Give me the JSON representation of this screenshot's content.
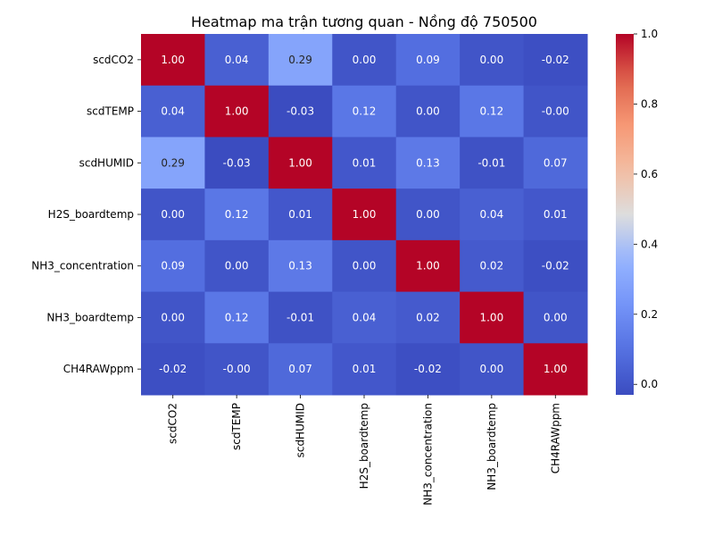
{
  "chart_data": {
    "type": "heatmap",
    "title": "Heatmap ma trận tương quan - Nồng độ 750500",
    "xlabel": "",
    "ylabel": "",
    "row_labels": [
      "scdCO2",
      "scdTEMP",
      "scdHUMID",
      "H2S_boardtemp",
      "NH3_concentration",
      "NH3_boardtemp",
      "CH4RAWppm"
    ],
    "col_labels": [
      "scdCO2",
      "scdTEMP",
      "scdHUMID",
      "H2S_boardtemp",
      "NH3_concentration",
      "NH3_boardtemp",
      "CH4RAWppm"
    ],
    "values": [
      [
        1.0,
        0.04,
        0.29,
        0.0,
        0.09,
        0.0,
        -0.02
      ],
      [
        0.04,
        1.0,
        -0.03,
        0.12,
        0.0,
        0.12,
        -0.0
      ],
      [
        0.29,
        -0.03,
        1.0,
        0.01,
        0.13,
        -0.01,
        0.07
      ],
      [
        0.0,
        0.12,
        0.01,
        1.0,
        0.0,
        0.04,
        0.01
      ],
      [
        0.09,
        0.0,
        0.13,
        0.0,
        1.0,
        0.02,
        -0.02
      ],
      [
        0.0,
        0.12,
        -0.01,
        0.04,
        0.02,
        1.0,
        0.0
      ],
      [
        -0.02,
        -0.0,
        0.07,
        0.01,
        -0.02,
        0.0,
        1.0
      ]
    ],
    "cell_labels": [
      [
        "1.00",
        "0.04",
        "0.29",
        "0.00",
        "0.09",
        "0.00",
        "-0.02"
      ],
      [
        "0.04",
        "1.00",
        "-0.03",
        "0.12",
        "0.00",
        "0.12",
        "-0.00"
      ],
      [
        "0.29",
        "-0.03",
        "1.00",
        "0.01",
        "0.13",
        "-0.01",
        "0.07"
      ],
      [
        "0.00",
        "0.12",
        "0.01",
        "1.00",
        "0.00",
        "0.04",
        "0.01"
      ],
      [
        "0.09",
        "0.00",
        "0.13",
        "0.00",
        "1.00",
        "0.02",
        "-0.02"
      ],
      [
        "0.00",
        "0.12",
        "-0.01",
        "0.04",
        "0.02",
        "1.00",
        "0.00"
      ],
      [
        "-0.02",
        "-0.00",
        "0.07",
        "0.01",
        "-0.02",
        "0.00",
        "1.00"
      ]
    ],
    "colormap": "coolwarm",
    "vmin": -0.03,
    "vmax": 1.0,
    "colorbar": {
      "ticks": [
        0.0,
        0.2,
        0.4,
        0.6,
        0.8,
        1.0
      ],
      "tick_labels": [
        "0.0",
        "0.2",
        "0.4",
        "0.6",
        "0.8",
        "1.0"
      ],
      "placement": "right"
    },
    "grid": false
  }
}
